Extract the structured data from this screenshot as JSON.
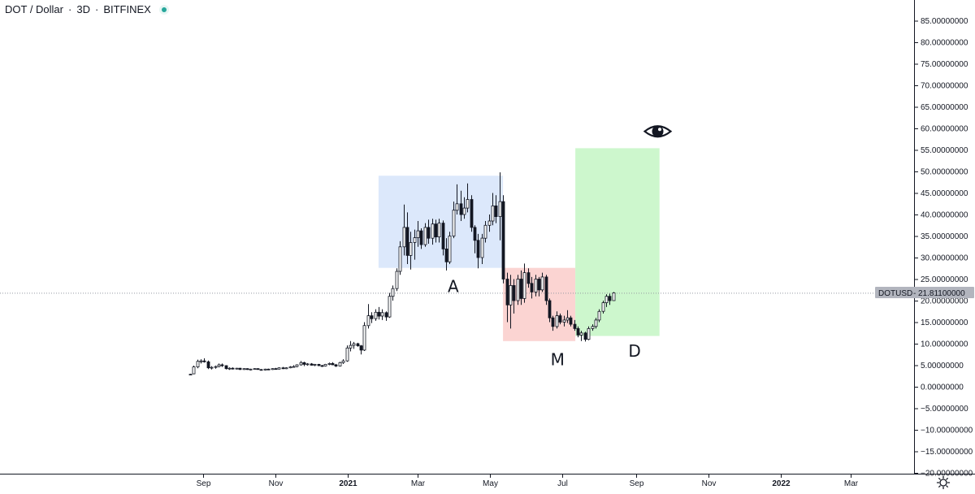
{
  "header": {
    "symbol": "DOT / Dollar",
    "separator": "·",
    "interval": "3D",
    "exchange": "BITFINEX"
  },
  "price_label": {
    "ticker": "DOTUSD",
    "value": "21.81100000"
  },
  "annotations": {
    "a": "A",
    "m": "M",
    "d": "D"
  },
  "colors": {
    "box_a": "#dce8fb",
    "box_m": "#fbd4d2",
    "box_d": "#cdf7cd",
    "candle": "#131722",
    "price_tag_bg": "#b2b5be",
    "live_dot": "#26a69a"
  },
  "icons": {
    "eye": "eye-icon",
    "settings": "gear-icon"
  },
  "chart_data": {
    "type": "candlestick",
    "title": "DOT / Dollar · 3D · BITFINEX",
    "ylim": [
      -20,
      88
    ],
    "yticks": [
      85,
      80,
      75,
      70,
      65,
      60,
      55,
      50,
      45,
      40,
      35,
      30,
      25,
      20,
      15,
      10,
      5,
      0,
      -5,
      -10,
      -15,
      -20
    ],
    "ytick_labels": [
      "85.00000000",
      "80.00000000",
      "75.00000000",
      "70.00000000",
      "65.00000000",
      "60.00000000",
      "55.00000000",
      "50.00000000",
      "45.00000000",
      "40.00000000",
      "35.00000000",
      "30.00000000",
      "25.00000000",
      "20.00000000",
      "15.00000000",
      "10.00000000",
      "5.00000000",
      "0.00000000",
      "−10.00000000",
      "−15.00000000",
      "−20.00000000"
    ],
    "ytick_values_for_labels": [
      85,
      80,
      75,
      70,
      65,
      60,
      55,
      50,
      45,
      40,
      35,
      30,
      25,
      20,
      15,
      10,
      5,
      0,
      -10,
      -15,
      -20
    ],
    "ytick_extra_label": {
      "value": -5,
      "label": "−5.00000000"
    },
    "xticks": [
      {
        "label": "Sep",
        "date": "2020-09-01",
        "bold": false
      },
      {
        "label": "Nov",
        "date": "2020-11-01",
        "bold": false
      },
      {
        "label": "2021",
        "date": "2021-01-01",
        "bold": true
      },
      {
        "label": "Mar",
        "date": "2021-03-01",
        "bold": false
      },
      {
        "label": "May",
        "date": "2021-05-01",
        "bold": false
      },
      {
        "label": "Jul",
        "date": "2021-07-01",
        "bold": false
      },
      {
        "label": "Sep",
        "date": "2021-09-01",
        "bold": false
      },
      {
        "label": "Nov",
        "date": "2021-11-01",
        "bold": false
      },
      {
        "label": "2022",
        "date": "2022-01-01",
        "bold": true
      },
      {
        "label": "Mar",
        "date": "2022-03-01",
        "bold": false
      }
    ],
    "last_price": 21.811,
    "boxes": [
      {
        "name": "A",
        "from": "2021-01-27",
        "to": "2021-05-12",
        "top": 49,
        "bottom": 27.6,
        "color": "#dce8fb"
      },
      {
        "name": "M",
        "from": "2021-05-12",
        "to": "2021-07-12",
        "top": 27.6,
        "bottom": 10.6,
        "color": "#fbd4d2"
      },
      {
        "name": "D",
        "from": "2021-07-12",
        "to": "2021-09-21",
        "top": 55.4,
        "bottom": 11.8,
        "color": "#cdf7cd"
      }
    ],
    "labels": [
      {
        "text": "A",
        "date": "2021-03-31",
        "value": 22
      },
      {
        "text": "M",
        "date": "2021-06-27",
        "value": 5
      },
      {
        "text": "D",
        "date": "2021-08-31",
        "value": 7
      }
    ],
    "eye_marker": {
      "date": "2021-09-01",
      "value": 59.5
    },
    "candles": [
      {
        "date": "2020-08-21",
        "o": 2.9,
        "h": 3.0,
        "l": 2.8,
        "c": 2.9
      },
      {
        "date": "2020-08-24",
        "o": 3.0,
        "h": 4.9,
        "l": 2.9,
        "c": 4.6
      },
      {
        "date": "2020-08-27",
        "o": 4.6,
        "h": 6.3,
        "l": 4.3,
        "c": 5.9
      },
      {
        "date": "2020-08-30",
        "o": 5.9,
        "h": 6.4,
        "l": 5.4,
        "c": 6.0
      },
      {
        "date": "2020-09-02",
        "o": 6.0,
        "h": 6.6,
        "l": 5.6,
        "c": 5.8
      },
      {
        "date": "2020-09-05",
        "o": 5.8,
        "h": 6.1,
        "l": 4.1,
        "c": 4.4
      },
      {
        "date": "2020-09-08",
        "o": 4.4,
        "h": 4.8,
        "l": 4.0,
        "c": 4.5
      },
      {
        "date": "2020-09-11",
        "o": 4.5,
        "h": 4.9,
        "l": 4.2,
        "c": 4.7
      },
      {
        "date": "2020-09-14",
        "o": 4.7,
        "h": 5.4,
        "l": 4.5,
        "c": 5.1
      },
      {
        "date": "2020-09-17",
        "o": 5.1,
        "h": 5.4,
        "l": 4.6,
        "c": 4.9
      },
      {
        "date": "2020-09-20",
        "o": 4.9,
        "h": 5.0,
        "l": 4.0,
        "c": 4.2
      },
      {
        "date": "2020-09-23",
        "o": 4.2,
        "h": 4.5,
        "l": 3.9,
        "c": 4.3
      },
      {
        "date": "2020-09-26",
        "o": 4.3,
        "h": 4.5,
        "l": 4.0,
        "c": 4.2
      },
      {
        "date": "2020-09-29",
        "o": 4.2,
        "h": 4.4,
        "l": 4.0,
        "c": 4.3
      },
      {
        "date": "2020-10-02",
        "o": 4.3,
        "h": 4.4,
        "l": 3.9,
        "c": 4.0
      },
      {
        "date": "2020-10-05",
        "o": 4.0,
        "h": 4.3,
        "l": 3.9,
        "c": 4.2
      },
      {
        "date": "2020-10-08",
        "o": 4.2,
        "h": 4.3,
        "l": 3.9,
        "c": 4.0
      },
      {
        "date": "2020-10-11",
        "o": 4.0,
        "h": 4.2,
        "l": 3.8,
        "c": 4.1
      },
      {
        "date": "2020-10-14",
        "o": 4.1,
        "h": 4.3,
        "l": 4.0,
        "c": 4.2
      },
      {
        "date": "2020-10-17",
        "o": 4.2,
        "h": 4.3,
        "l": 4.0,
        "c": 4.0
      },
      {
        "date": "2020-10-20",
        "o": 4.0,
        "h": 4.1,
        "l": 3.8,
        "c": 3.9
      },
      {
        "date": "2020-10-23",
        "o": 3.9,
        "h": 4.2,
        "l": 3.8,
        "c": 4.1
      },
      {
        "date": "2020-10-26",
        "o": 4.1,
        "h": 4.2,
        "l": 3.9,
        "c": 4.0
      },
      {
        "date": "2020-10-29",
        "o": 4.0,
        "h": 4.3,
        "l": 3.9,
        "c": 4.2
      },
      {
        "date": "2020-11-01",
        "o": 4.2,
        "h": 4.4,
        "l": 4.0,
        "c": 4.1
      },
      {
        "date": "2020-11-04",
        "o": 4.1,
        "h": 4.5,
        "l": 4.0,
        "c": 4.4
      },
      {
        "date": "2020-11-07",
        "o": 4.4,
        "h": 4.6,
        "l": 4.1,
        "c": 4.2
      },
      {
        "date": "2020-11-10",
        "o": 4.2,
        "h": 4.5,
        "l": 4.1,
        "c": 4.4
      },
      {
        "date": "2020-11-13",
        "o": 4.4,
        "h": 4.8,
        "l": 4.3,
        "c": 4.6
      },
      {
        "date": "2020-11-16",
        "o": 4.6,
        "h": 5.0,
        "l": 4.5,
        "c": 4.7
      },
      {
        "date": "2020-11-19",
        "o": 4.7,
        "h": 5.2,
        "l": 4.5,
        "c": 5.1
      },
      {
        "date": "2020-11-22",
        "o": 5.1,
        "h": 6.0,
        "l": 4.9,
        "c": 5.6
      },
      {
        "date": "2020-11-25",
        "o": 5.6,
        "h": 5.8,
        "l": 4.8,
        "c": 5.2
      },
      {
        "date": "2020-11-28",
        "o": 5.2,
        "h": 5.5,
        "l": 4.9,
        "c": 5.3
      },
      {
        "date": "2020-12-01",
        "o": 5.3,
        "h": 5.5,
        "l": 4.9,
        "c": 5.0
      },
      {
        "date": "2020-12-04",
        "o": 5.0,
        "h": 5.3,
        "l": 4.8,
        "c": 5.2
      },
      {
        "date": "2020-12-07",
        "o": 5.2,
        "h": 5.3,
        "l": 4.8,
        "c": 4.9
      },
      {
        "date": "2020-12-10",
        "o": 4.9,
        "h": 5.1,
        "l": 4.6,
        "c": 4.8
      },
      {
        "date": "2020-12-13",
        "o": 4.8,
        "h": 5.3,
        "l": 4.7,
        "c": 5.2
      },
      {
        "date": "2020-12-16",
        "o": 5.2,
        "h": 5.6,
        "l": 5.0,
        "c": 5.4
      },
      {
        "date": "2020-12-19",
        "o": 5.4,
        "h": 5.7,
        "l": 5.0,
        "c": 5.1
      },
      {
        "date": "2020-12-22",
        "o": 5.1,
        "h": 5.3,
        "l": 4.6,
        "c": 4.8
      },
      {
        "date": "2020-12-25",
        "o": 4.8,
        "h": 5.8,
        "l": 4.7,
        "c": 5.6
      },
      {
        "date": "2020-12-28",
        "o": 5.6,
        "h": 6.4,
        "l": 5.3,
        "c": 6.0
      },
      {
        "date": "2020-12-31",
        "o": 6.0,
        "h": 9.6,
        "l": 5.8,
        "c": 9.0
      },
      {
        "date": "2021-01-03",
        "o": 9.0,
        "h": 10.6,
        "l": 8.2,
        "c": 9.6
      },
      {
        "date": "2021-01-06",
        "o": 9.6,
        "h": 10.4,
        "l": 8.8,
        "c": 10.0
      },
      {
        "date": "2021-01-09",
        "o": 10.0,
        "h": 10.2,
        "l": 9.3,
        "c": 9.5
      },
      {
        "date": "2021-01-12",
        "o": 9.5,
        "h": 9.7,
        "l": 7.5,
        "c": 8.5
      },
      {
        "date": "2021-01-15",
        "o": 8.5,
        "h": 15.0,
        "l": 8.3,
        "c": 14.2
      },
      {
        "date": "2021-01-18",
        "o": 14.2,
        "h": 19.2,
        "l": 13.5,
        "c": 16.5
      },
      {
        "date": "2021-01-21",
        "o": 16.5,
        "h": 17.3,
        "l": 14.8,
        "c": 15.8
      },
      {
        "date": "2021-01-24",
        "o": 15.8,
        "h": 18.0,
        "l": 15.3,
        "c": 17.3
      },
      {
        "date": "2021-01-27",
        "o": 17.3,
        "h": 18.5,
        "l": 15.6,
        "c": 16.4
      },
      {
        "date": "2021-01-30",
        "o": 16.4,
        "h": 18.0,
        "l": 15.5,
        "c": 17.2
      },
      {
        "date": "2021-02-02",
        "o": 17.2,
        "h": 17.5,
        "l": 15.3,
        "c": 16.2
      },
      {
        "date": "2021-02-05",
        "o": 16.2,
        "h": 21.8,
        "l": 16.0,
        "c": 21.0
      },
      {
        "date": "2021-02-08",
        "o": 21.0,
        "h": 23.5,
        "l": 20.0,
        "c": 22.8
      },
      {
        "date": "2021-02-11",
        "o": 22.8,
        "h": 27.5,
        "l": 22.2,
        "c": 26.8
      },
      {
        "date": "2021-02-14",
        "o": 26.8,
        "h": 33.8,
        "l": 26.0,
        "c": 32.5
      },
      {
        "date": "2021-02-17",
        "o": 32.5,
        "h": 42.3,
        "l": 30.5,
        "c": 37.0
      },
      {
        "date": "2021-02-20",
        "o": 37.0,
        "h": 40.5,
        "l": 28.5,
        "c": 30.5
      },
      {
        "date": "2021-02-23",
        "o": 30.5,
        "h": 36.0,
        "l": 27.2,
        "c": 33.5
      },
      {
        "date": "2021-02-26",
        "o": 33.5,
        "h": 36.5,
        "l": 29.5,
        "c": 34.6
      },
      {
        "date": "2021-03-01",
        "o": 34.6,
        "h": 38.5,
        "l": 32.5,
        "c": 36.2
      },
      {
        "date": "2021-03-04",
        "o": 36.2,
        "h": 36.8,
        "l": 32.0,
        "c": 33.0
      },
      {
        "date": "2021-03-07",
        "o": 33.0,
        "h": 38.0,
        "l": 32.5,
        "c": 37.0
      },
      {
        "date": "2021-03-10",
        "o": 37.0,
        "h": 38.8,
        "l": 33.2,
        "c": 34.5
      },
      {
        "date": "2021-03-13",
        "o": 34.5,
        "h": 39.0,
        "l": 33.0,
        "c": 37.8
      },
      {
        "date": "2021-03-16",
        "o": 37.8,
        "h": 38.8,
        "l": 33.5,
        "c": 34.8
      },
      {
        "date": "2021-03-19",
        "o": 34.8,
        "h": 39.0,
        "l": 33.5,
        "c": 38.0
      },
      {
        "date": "2021-03-22",
        "o": 38.0,
        "h": 38.6,
        "l": 30.5,
        "c": 32.0
      },
      {
        "date": "2021-03-25",
        "o": 32.0,
        "h": 34.5,
        "l": 27.0,
        "c": 29.0
      },
      {
        "date": "2021-03-28",
        "o": 29.0,
        "h": 36.0,
        "l": 28.5,
        "c": 35.0
      },
      {
        "date": "2021-03-31",
        "o": 35.0,
        "h": 43.0,
        "l": 34.5,
        "c": 41.0
      },
      {
        "date": "2021-04-03",
        "o": 41.0,
        "h": 47.0,
        "l": 40.0,
        "c": 42.5
      },
      {
        "date": "2021-04-06",
        "o": 42.5,
        "h": 45.5,
        "l": 38.5,
        "c": 40.0
      },
      {
        "date": "2021-04-09",
        "o": 40.0,
        "h": 44.0,
        "l": 39.0,
        "c": 41.5
      },
      {
        "date": "2021-04-12",
        "o": 41.5,
        "h": 47.2,
        "l": 40.5,
        "c": 43.5
      },
      {
        "date": "2021-04-15",
        "o": 43.5,
        "h": 44.5,
        "l": 36.0,
        "c": 37.0
      },
      {
        "date": "2021-04-18",
        "o": 37.0,
        "h": 37.5,
        "l": 31.0,
        "c": 34.0
      },
      {
        "date": "2021-04-21",
        "o": 34.0,
        "h": 35.5,
        "l": 27.5,
        "c": 30.0
      },
      {
        "date": "2021-04-24",
        "o": 30.0,
        "h": 35.5,
        "l": 28.5,
        "c": 34.5
      },
      {
        "date": "2021-04-27",
        "o": 34.5,
        "h": 38.5,
        "l": 33.5,
        "c": 37.5
      },
      {
        "date": "2021-04-30",
        "o": 37.5,
        "h": 40.0,
        "l": 36.0,
        "c": 38.5
      },
      {
        "date": "2021-05-03",
        "o": 38.5,
        "h": 45.0,
        "l": 37.5,
        "c": 42.0
      },
      {
        "date": "2021-05-06",
        "o": 42.0,
        "h": 44.5,
        "l": 38.0,
        "c": 39.5
      },
      {
        "date": "2021-05-09",
        "o": 39.5,
        "h": 49.8,
        "l": 34.0,
        "c": 43.0
      },
      {
        "date": "2021-05-12",
        "o": 43.0,
        "h": 44.5,
        "l": 24.0,
        "c": 25.0
      },
      {
        "date": "2021-05-15",
        "o": 25.0,
        "h": 26.5,
        "l": 15.0,
        "c": 19.0
      },
      {
        "date": "2021-05-18",
        "o": 19.0,
        "h": 26.0,
        "l": 13.5,
        "c": 23.5
      },
      {
        "date": "2021-05-21",
        "o": 23.5,
        "h": 25.0,
        "l": 17.0,
        "c": 20.0
      },
      {
        "date": "2021-05-24",
        "o": 20.0,
        "h": 26.0,
        "l": 19.0,
        "c": 25.0
      },
      {
        "date": "2021-05-27",
        "o": 25.0,
        "h": 27.0,
        "l": 19.0,
        "c": 20.5
      },
      {
        "date": "2021-05-30",
        "o": 20.5,
        "h": 28.6,
        "l": 19.5,
        "c": 26.5
      },
      {
        "date": "2021-06-02",
        "o": 26.5,
        "h": 27.5,
        "l": 23.0,
        "c": 24.0
      },
      {
        "date": "2021-06-05",
        "o": 24.0,
        "h": 25.5,
        "l": 20.5,
        "c": 22.0
      },
      {
        "date": "2021-06-08",
        "o": 22.0,
        "h": 26.0,
        "l": 21.0,
        "c": 25.0
      },
      {
        "date": "2021-06-11",
        "o": 25.0,
        "h": 25.5,
        "l": 21.0,
        "c": 22.5
      },
      {
        "date": "2021-06-14",
        "o": 22.5,
        "h": 26.5,
        "l": 22.0,
        "c": 25.5
      },
      {
        "date": "2021-06-17",
        "o": 25.5,
        "h": 26.0,
        "l": 19.0,
        "c": 20.0
      },
      {
        "date": "2021-06-20",
        "o": 20.0,
        "h": 20.5,
        "l": 15.0,
        "c": 16.0
      },
      {
        "date": "2021-06-23",
        "o": 16.0,
        "h": 16.5,
        "l": 13.0,
        "c": 14.0
      },
      {
        "date": "2021-06-26",
        "o": 14.0,
        "h": 17.5,
        "l": 13.5,
        "c": 16.5
      },
      {
        "date": "2021-06-29",
        "o": 16.5,
        "h": 17.0,
        "l": 14.5,
        "c": 15.0
      },
      {
        "date": "2021-07-02",
        "o": 15.0,
        "h": 16.5,
        "l": 14.0,
        "c": 15.5
      },
      {
        "date": "2021-07-05",
        "o": 15.5,
        "h": 17.8,
        "l": 14.8,
        "c": 16.0
      },
      {
        "date": "2021-07-08",
        "o": 16.0,
        "h": 16.5,
        "l": 14.0,
        "c": 14.5
      },
      {
        "date": "2021-07-11",
        "o": 14.5,
        "h": 15.5,
        "l": 13.0,
        "c": 13.5
      },
      {
        "date": "2021-07-14",
        "o": 13.5,
        "h": 14.0,
        "l": 11.5,
        "c": 12.0
      },
      {
        "date": "2021-07-17",
        "o": 12.0,
        "h": 13.0,
        "l": 10.6,
        "c": 12.5
      },
      {
        "date": "2021-07-20",
        "o": 12.5,
        "h": 12.8,
        "l": 10.5,
        "c": 11.0
      },
      {
        "date": "2021-07-23",
        "o": 11.0,
        "h": 14.0,
        "l": 10.8,
        "c": 13.5
      },
      {
        "date": "2021-07-26",
        "o": 13.5,
        "h": 14.5,
        "l": 13.0,
        "c": 14.0
      },
      {
        "date": "2021-07-29",
        "o": 14.0,
        "h": 16.0,
        "l": 13.5,
        "c": 15.5
      },
      {
        "date": "2021-08-01",
        "o": 15.5,
        "h": 18.0,
        "l": 15.0,
        "c": 17.5
      },
      {
        "date": "2021-08-04",
        "o": 17.5,
        "h": 20.0,
        "l": 17.0,
        "c": 19.5
      },
      {
        "date": "2021-08-07",
        "o": 19.5,
        "h": 21.5,
        "l": 18.5,
        "c": 21.0
      },
      {
        "date": "2021-08-10",
        "o": 21.0,
        "h": 21.6,
        "l": 19.0,
        "c": 20.0
      },
      {
        "date": "2021-08-13",
        "o": 20.0,
        "h": 22.0,
        "l": 20.0,
        "c": 21.8
      }
    ]
  }
}
